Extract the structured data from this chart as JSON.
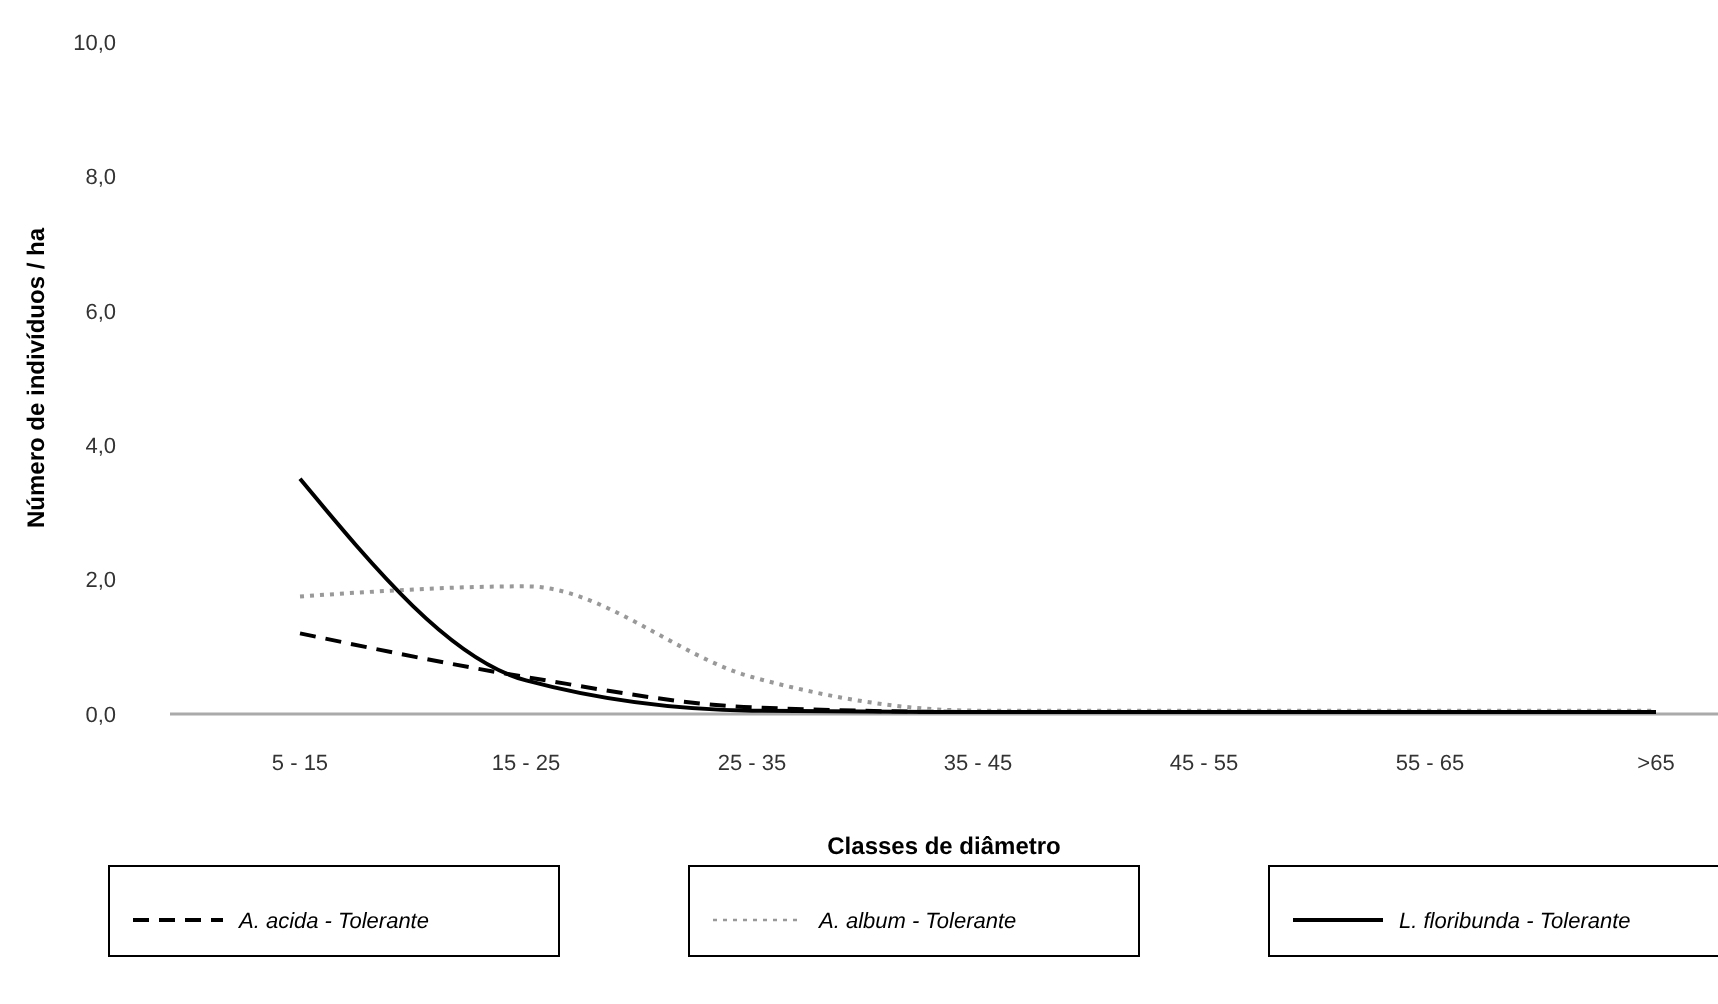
{
  "chart_data": {
    "type": "line",
    "xlabel": "Classes de diâmetro",
    "ylabel": "Número de indivíduos / ha",
    "categories": [
      "5 - 15",
      "15 - 25",
      "25 - 35",
      "35 - 45",
      "45 - 55",
      "55 - 65",
      ">65"
    ],
    "ylim": [
      0,
      10
    ],
    "yticks": [
      {
        "value": 0,
        "label": "0,0"
      },
      {
        "value": 2,
        "label": "2,0"
      },
      {
        "value": 4,
        "label": "4,0"
      },
      {
        "value": 6,
        "label": "6,0"
      },
      {
        "value": 8,
        "label": "8,0"
      },
      {
        "value": 10,
        "label": "10,0"
      }
    ],
    "grid": false,
    "legend": "bottom",
    "marker": "none",
    "series": [
      {
        "name": "A. acida -  Tolerante",
        "color": "#000000",
        "line_style": "dashed",
        "values": [
          1.2,
          0.55,
          0.1,
          0.03,
          0.03,
          0.03,
          0.03
        ]
      },
      {
        "name": "A. album -  Tolerante",
        "color": "#999999",
        "line_style": "dotted",
        "values": [
          1.75,
          1.9,
          0.55,
          0.05,
          0.05,
          0.05,
          0.05
        ]
      },
      {
        "name": "L. floribunda - Tolerante",
        "color": "#000000",
        "line_style": "solid",
        "values": [
          3.5,
          0.5,
          0.05,
          0.03,
          0.03,
          0.03,
          0.03
        ]
      }
    ]
  }
}
